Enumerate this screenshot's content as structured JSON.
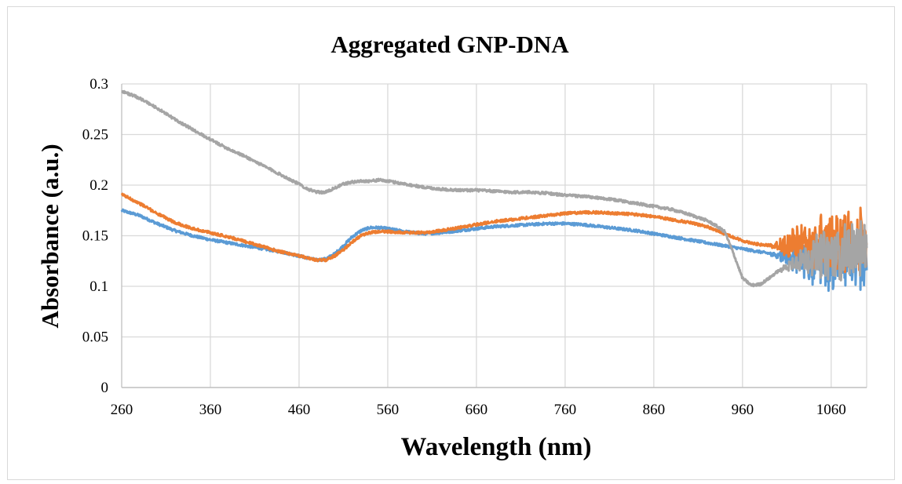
{
  "chart_data": {
    "type": "line",
    "title": "Aggregated GNP-DNA",
    "xlabel": "Wavelength (nm)",
    "ylabel": "Absorbance (a.u.)",
    "xlim": [
      260,
      1100
    ],
    "ylim": [
      0,
      0.3
    ],
    "x_ticks": [
      "260",
      "360",
      "460",
      "560",
      "660",
      "760",
      "860",
      "960",
      "1060"
    ],
    "y_ticks": [
      "0",
      "0.05",
      "0.1",
      "0.15",
      "0.2",
      "0.25",
      "0.3"
    ],
    "grid": true,
    "legend": "none",
    "series": [
      {
        "color": "#5b9bd5",
        "x": [
          260,
          280,
          300,
          320,
          340,
          360,
          380,
          400,
          420,
          440,
          460,
          480,
          490,
          500,
          510,
          520,
          530,
          540,
          550,
          560,
          580,
          600,
          620,
          640,
          660,
          680,
          700,
          720,
          740,
          760,
          780,
          800,
          820,
          840,
          860,
          880,
          900,
          920,
          940,
          960,
          980,
          1000,
          1020,
          1040,
          1060,
          1080,
          1100
        ],
        "y": [
          0.175,
          0.17,
          0.162,
          0.155,
          0.15,
          0.146,
          0.143,
          0.14,
          0.137,
          0.134,
          0.13,
          0.126,
          0.127,
          0.132,
          0.14,
          0.149,
          0.155,
          0.158,
          0.158,
          0.157,
          0.154,
          0.152,
          0.153,
          0.155,
          0.157,
          0.159,
          0.16,
          0.161,
          0.162,
          0.162,
          0.161,
          0.159,
          0.157,
          0.155,
          0.152,
          0.149,
          0.146,
          0.143,
          0.14,
          0.137,
          0.134,
          0.131,
          0.128,
          0.126,
          0.124,
          0.122,
          0.125
        ],
        "noise_from": 990,
        "noise_amp": 0.03
      },
      {
        "color": "#ed7d31",
        "x": [
          260,
          280,
          300,
          320,
          340,
          360,
          380,
          400,
          420,
          440,
          460,
          480,
          490,
          500,
          510,
          520,
          530,
          540,
          550,
          560,
          580,
          600,
          620,
          640,
          660,
          680,
          700,
          720,
          740,
          760,
          780,
          800,
          820,
          840,
          860,
          880,
          900,
          920,
          940,
          960,
          980,
          1000,
          1020,
          1040,
          1060,
          1080,
          1100
        ],
        "y": [
          0.191,
          0.182,
          0.172,
          0.163,
          0.157,
          0.153,
          0.149,
          0.144,
          0.139,
          0.134,
          0.13,
          0.126,
          0.126,
          0.13,
          0.136,
          0.144,
          0.15,
          0.153,
          0.154,
          0.154,
          0.153,
          0.153,
          0.155,
          0.158,
          0.161,
          0.164,
          0.166,
          0.168,
          0.17,
          0.172,
          0.173,
          0.173,
          0.172,
          0.171,
          0.169,
          0.166,
          0.163,
          0.159,
          0.152,
          0.145,
          0.141,
          0.14,
          0.142,
          0.143,
          0.144,
          0.145,
          0.14
        ],
        "noise_from": 990,
        "noise_amp": 0.035
      },
      {
        "color": "#a5a5a5",
        "x": [
          260,
          280,
          300,
          320,
          340,
          360,
          380,
          400,
          420,
          440,
          460,
          470,
          480,
          490,
          500,
          510,
          520,
          530,
          540,
          550,
          560,
          580,
          600,
          620,
          640,
          660,
          680,
          700,
          720,
          740,
          760,
          780,
          800,
          820,
          840,
          860,
          880,
          900,
          920,
          930,
          940,
          950,
          960,
          970,
          980,
          990,
          1000,
          1020,
          1040,
          1060,
          1080,
          1100
        ],
        "y": [
          0.293,
          0.286,
          0.276,
          0.265,
          0.255,
          0.245,
          0.236,
          0.228,
          0.219,
          0.21,
          0.201,
          0.196,
          0.193,
          0.193,
          0.197,
          0.201,
          0.203,
          0.204,
          0.204,
          0.205,
          0.204,
          0.201,
          0.198,
          0.196,
          0.195,
          0.195,
          0.194,
          0.193,
          0.193,
          0.192,
          0.19,
          0.189,
          0.187,
          0.185,
          0.182,
          0.179,
          0.176,
          0.171,
          0.165,
          0.16,
          0.154,
          0.132,
          0.108,
          0.101,
          0.102,
          0.108,
          0.115,
          0.124,
          0.13,
          0.133,
          0.135,
          0.14
        ],
        "noise_from": 1000,
        "noise_amp": 0.03
      }
    ]
  }
}
